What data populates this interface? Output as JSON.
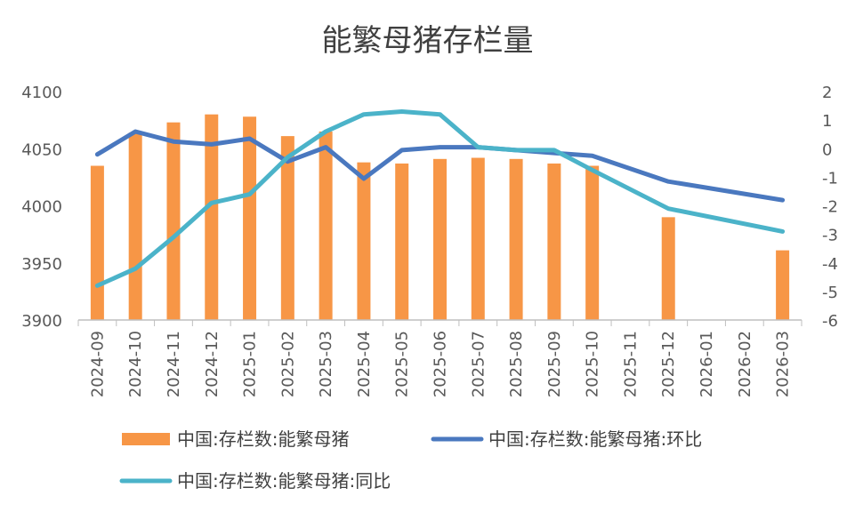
{
  "chart_data": {
    "type": "bar+line",
    "title": "能繁母猪存栏量",
    "categories": [
      "2024-09",
      "2024-10",
      "2024-11",
      "2024-12",
      "2025-01",
      "2025-02",
      "2025-03",
      "2025-04",
      "2025-05",
      "2025-06",
      "2025-07",
      "2025-08",
      "2025-09",
      "2025-10",
      "2025-11",
      "2025-12",
      "2026-01",
      "2026-02",
      "2026-03"
    ],
    "left_axis": {
      "min": 3900,
      "max": 4100,
      "ticks": [
        "3900",
        "3950",
        "4000",
        "4050",
        "4100"
      ]
    },
    "right_axis": {
      "min": -6,
      "max": 2,
      "ticks": [
        "-6",
        "-5",
        "-4",
        "-3",
        "-2",
        "-1",
        "0",
        "1",
        "2"
      ]
    },
    "series": [
      {
        "name": "中国:存栏数:能繁母猪",
        "kind": "bar",
        "axis": "left",
        "color": "#F79646",
        "values": [
          4035,
          4064,
          4073,
          4080,
          4078,
          4061,
          4065,
          4038,
          4037,
          4041,
          4042,
          4041,
          4037,
          4035,
          null,
          3990,
          null,
          null,
          3961
        ]
      },
      {
        "name": "中国:存栏数:能繁母猪:环比",
        "kind": "line",
        "axis": "right",
        "color": "#4A78BF",
        "values": [
          -0.2,
          0.6,
          0.25,
          0.15,
          0.35,
          -0.45,
          0.05,
          -1.05,
          -0.05,
          0.05,
          0.05,
          -0.05,
          -0.15,
          -0.25,
          null,
          -1.15,
          null,
          null,
          -1.8
        ]
      },
      {
        "name": "中国:存栏数:能繁母猪:同比",
        "kind": "line",
        "axis": "right",
        "color": "#4BB3C9",
        "values": [
          -4.8,
          -4.2,
          -3.1,
          -1.9,
          -1.6,
          -0.3,
          0.6,
          1.2,
          1.3,
          1.2,
          0.05,
          -0.05,
          -0.05,
          -0.75,
          null,
          -2.1,
          null,
          null,
          -2.9
        ]
      }
    ],
    "legend": [
      "中国:存栏数:能繁母猪",
      "中国:存栏数:能繁母猪:环比",
      "中国:存栏数:能繁母猪:同比"
    ],
    "grid": false,
    "legend_position": "bottom"
  }
}
